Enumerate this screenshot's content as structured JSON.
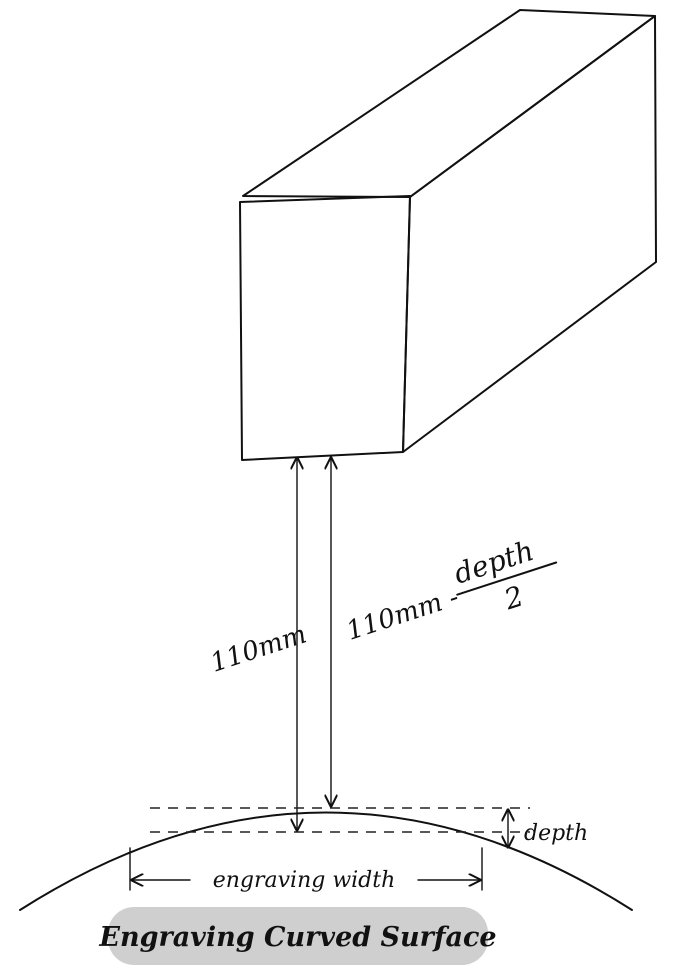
{
  "labels": {
    "left_distance": "110mm",
    "right_distance_prefix": "110mm -",
    "right_distance_numerator": "depth",
    "right_distance_denominator": "2",
    "depth": "depth",
    "width": "engraving width",
    "caption": "Engraving Curved Surface"
  },
  "colors": {
    "block_fill": "#d2d2d2",
    "banner_fill": "#cfcfcf",
    "ink": "#111111"
  }
}
